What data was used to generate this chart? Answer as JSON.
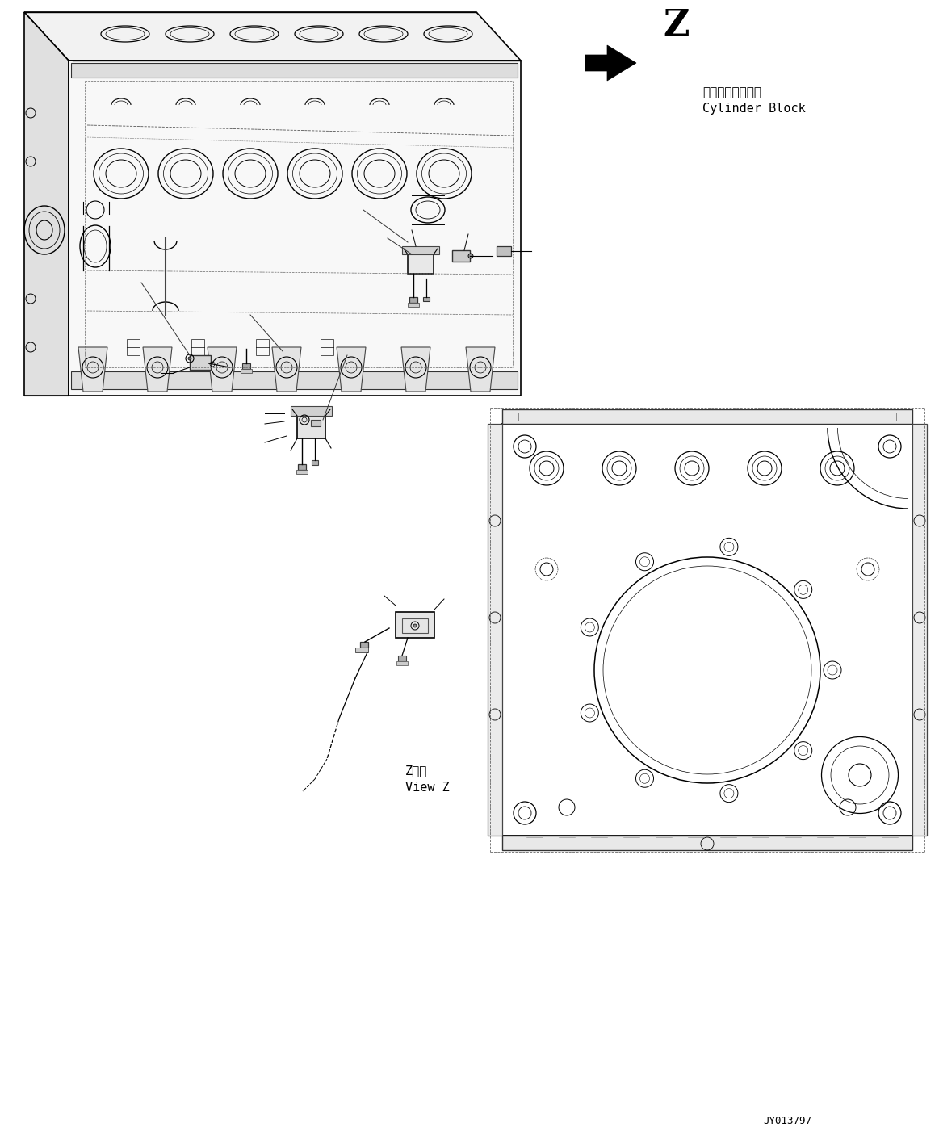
{
  "bg_color": "#ffffff",
  "line_color": "#000000",
  "fig_width": 11.63,
  "fig_height": 14.12,
  "dpi": 100,
  "label_z": "Z",
  "arrow_label_japanese": "シリンダブロック",
  "arrow_label_english": "Cylinder Block",
  "label_view_z_japanese": "Z　視",
  "label_view_z_english": "View Z",
  "label_part_number": "JY013797"
}
